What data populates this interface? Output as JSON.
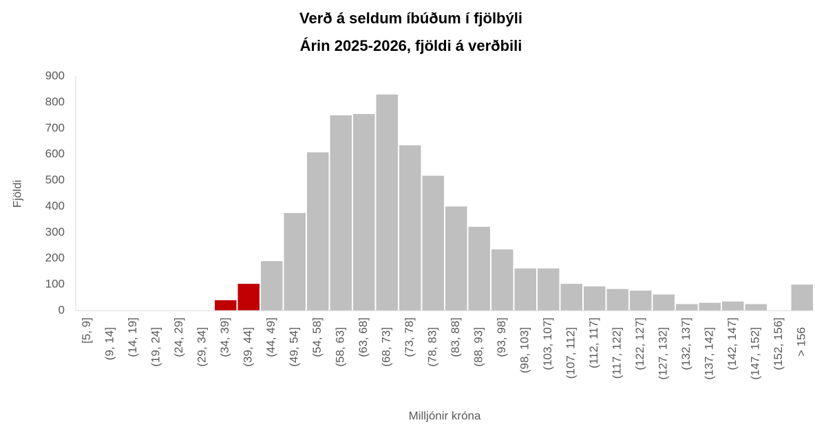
{
  "chart_data": {
    "type": "bar",
    "title": "Verð á seldum íbúðum í fjölbýli",
    "subtitle": "Árin 2025-2026, fjöldi á verðbili",
    "y_label": "Fjöldi",
    "x_label": "Milljónir króna",
    "categories": [
      "[5, 9]",
      "(9, 14]",
      "(14, 19]",
      "(19, 24]",
      "(24, 29]",
      "(29, 34]",
      "(34, 39]",
      "(39, 44]",
      "(44, 49]",
      "(49, 54]",
      "(54, 58]",
      "(58, 63]",
      "(63, 68]",
      "(68, 73]",
      "(73, 78]",
      "(78, 83]",
      "(83, 88]",
      "(88, 93]",
      "(93, 98]",
      "(98, 103]",
      "(103, 107]",
      "(107, 112]",
      "(112, 117]",
      "(117, 122]",
      "(122, 127]",
      "(127, 132]",
      "(132, 137]",
      "(137, 142]",
      "(142, 147]",
      "(147, 152]",
      "(152, 156]",
      "> 156"
    ],
    "values": [
      0,
      0,
      0,
      0,
      0,
      0,
      40,
      103,
      190,
      375,
      608,
      750,
      755,
      830,
      635,
      518,
      400,
      322,
      235,
      162,
      162,
      103,
      93,
      83,
      77,
      62,
      25,
      30,
      35,
      25,
      0,
      100
    ],
    "colors": [
      "#bfbfbf",
      "#bfbfbf",
      "#bfbfbf",
      "#bfbfbf",
      "#bfbfbf",
      "#bfbfbf",
      "#c00000",
      "#c00000",
      "#bfbfbf",
      "#bfbfbf",
      "#bfbfbf",
      "#bfbfbf",
      "#bfbfbf",
      "#bfbfbf",
      "#bfbfbf",
      "#bfbfbf",
      "#bfbfbf",
      "#bfbfbf",
      "#bfbfbf",
      "#bfbfbf",
      "#bfbfbf",
      "#bfbfbf",
      "#bfbfbf",
      "#bfbfbf",
      "#bfbfbf",
      "#bfbfbf",
      "#bfbfbf",
      "#bfbfbf",
      "#bfbfbf",
      "#bfbfbf",
      "#bfbfbf",
      "#bfbfbf"
    ],
    "ylim": [
      0,
      900
    ],
    "yticks": [
      0,
      100,
      200,
      300,
      400,
      500,
      600,
      700,
      800,
      900
    ],
    "grid": false
  }
}
